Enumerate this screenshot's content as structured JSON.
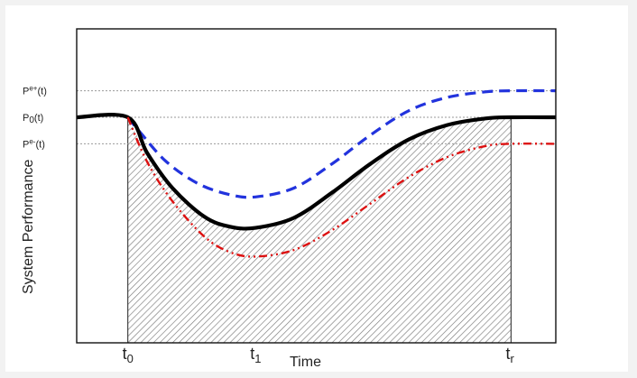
{
  "chart_data": {
    "type": "line",
    "xlabel": "Time",
    "ylabel": "System Performance",
    "x_ticks": [
      {
        "label": "t",
        "sub": "0",
        "x": 0
      },
      {
        "label": "t",
        "sub": "1",
        "x": 1
      },
      {
        "label": "t",
        "sub": "r",
        "x": 3
      }
    ],
    "y_levels": [
      {
        "label": "P",
        "sup": "e+",
        "tail": "(t)",
        "y": 1.12,
        "key": "upper"
      },
      {
        "label": "P",
        "sub": "0",
        "tail": "(t)",
        "y": 1.0,
        "key": "baseline"
      },
      {
        "label": "P",
        "sup": "e-",
        "tail": "(t)",
        "y": 0.88,
        "key": "lower"
      }
    ],
    "xlim": [
      -0.4,
      3.35
    ],
    "ylim": [
      -0.02,
      1.4
    ],
    "series": [
      {
        "key": "upper",
        "color": "#2233dd",
        "style": "dashed",
        "points": [
          [
            0,
            1.0
          ],
          [
            0.1,
            0.93
          ],
          [
            0.3,
            0.8
          ],
          [
            0.55,
            0.7
          ],
          [
            0.8,
            0.65
          ],
          [
            1.0,
            0.64
          ],
          [
            1.3,
            0.68
          ],
          [
            1.6,
            0.79
          ],
          [
            1.9,
            0.92
          ],
          [
            2.2,
            1.03
          ],
          [
            2.5,
            1.09
          ],
          [
            2.8,
            1.115
          ],
          [
            3.0,
            1.12
          ],
          [
            3.35,
            1.12
          ]
        ]
      },
      {
        "key": "baseline",
        "color": "#000000",
        "style": "solid",
        "points": [
          [
            -0.4,
            1.0
          ],
          [
            0,
            1.0
          ],
          [
            0.15,
            0.84
          ],
          [
            0.35,
            0.68
          ],
          [
            0.6,
            0.55
          ],
          [
            0.8,
            0.505
          ],
          [
            1.0,
            0.5
          ],
          [
            1.3,
            0.545
          ],
          [
            1.6,
            0.66
          ],
          [
            1.9,
            0.79
          ],
          [
            2.2,
            0.9
          ],
          [
            2.5,
            0.965
          ],
          [
            2.8,
            0.995
          ],
          [
            3.0,
            1.0
          ],
          [
            3.35,
            1.0
          ]
        ]
      },
      {
        "key": "lower",
        "color": "#dd1111",
        "style": "dashdot",
        "points": [
          [
            0,
            1.0
          ],
          [
            0.15,
            0.8
          ],
          [
            0.35,
            0.62
          ],
          [
            0.6,
            0.46
          ],
          [
            0.8,
            0.39
          ],
          [
            1.0,
            0.37
          ],
          [
            1.3,
            0.4
          ],
          [
            1.6,
            0.49
          ],
          [
            1.9,
            0.61
          ],
          [
            2.2,
            0.73
          ],
          [
            2.5,
            0.82
          ],
          [
            2.8,
            0.87
          ],
          [
            3.0,
            0.88
          ],
          [
            3.35,
            0.88
          ]
        ]
      }
    ],
    "shaded_region": {
      "between": "baseline",
      "from_x": 0,
      "to_x": 3,
      "pattern": "hatched"
    },
    "grid": false,
    "legend": "none"
  }
}
